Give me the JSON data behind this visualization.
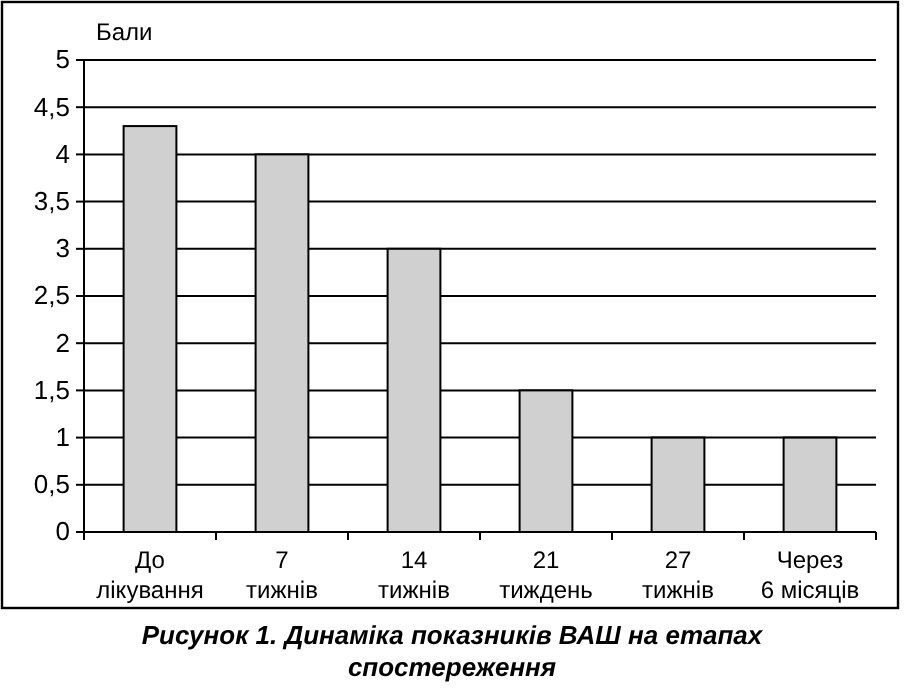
{
  "chart_data": {
    "type": "bar",
    "title": "Рисунок 1. Динаміка показників ВАШ на етапах спостереження",
    "ylabel": "Бали",
    "categories": [
      "До лікування",
      "7 тижнів",
      "14 тижнів",
      "21 тиждень",
      "27 тижнів",
      "Через 6 місяців"
    ],
    "values": [
      4.3,
      4,
      3,
      1.5,
      1,
      1
    ],
    "color": "#d0d0d0",
    "ylim": [
      0,
      5
    ],
    "yticks": [
      0,
      {
        "value": 0.5,
        "label": "0,5"
      },
      1,
      {
        "value": 1.5,
        "label": "1,5"
      },
      2,
      {
        "value": 2.5,
        "label": "2,5"
      },
      3,
      {
        "value": 3.5,
        "label": "3,5"
      },
      4,
      {
        "value": 4.5,
        "label": "4,5"
      },
      5
    ],
    "grid": "y"
  }
}
